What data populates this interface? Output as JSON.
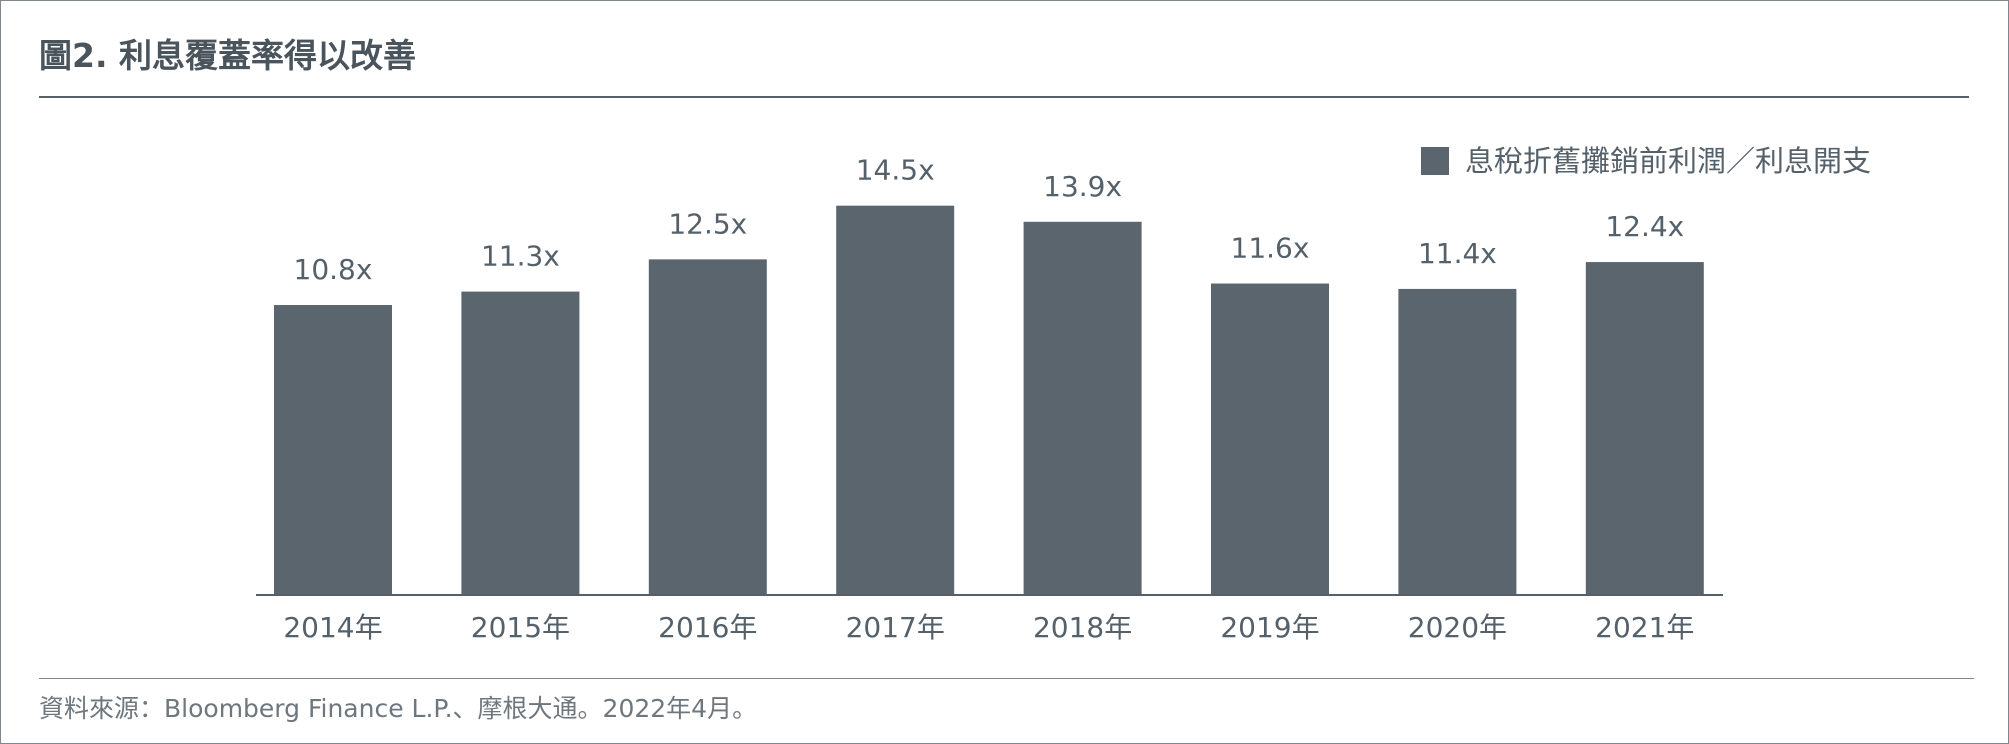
{
  "title": "圖2. 利息覆蓋率得以改善",
  "source": "資料來源：Bloomberg Finance L.P.、摩根大通。2022年4月。",
  "colors": {
    "bar": "#5a656e",
    "text": "#55616a",
    "rule": "#55616a"
  },
  "chart_data": {
    "type": "bar",
    "categories": [
      "2014年",
      "2015年",
      "2016年",
      "2017年",
      "2018年",
      "2019年",
      "2020年",
      "2021年"
    ],
    "series": [
      {
        "name": "息稅折舊攤銷前利潤／利息開支",
        "values": [
          10.8,
          11.3,
          12.5,
          14.5,
          13.9,
          11.6,
          11.4,
          12.4
        ]
      }
    ],
    "data_labels": [
      "10.8x",
      "11.3x",
      "12.5x",
      "14.5x",
      "13.9x",
      "11.6x",
      "11.4x",
      "12.4x"
    ],
    "legend": "top-right",
    "grid": false,
    "y_axis_visible": false
  }
}
